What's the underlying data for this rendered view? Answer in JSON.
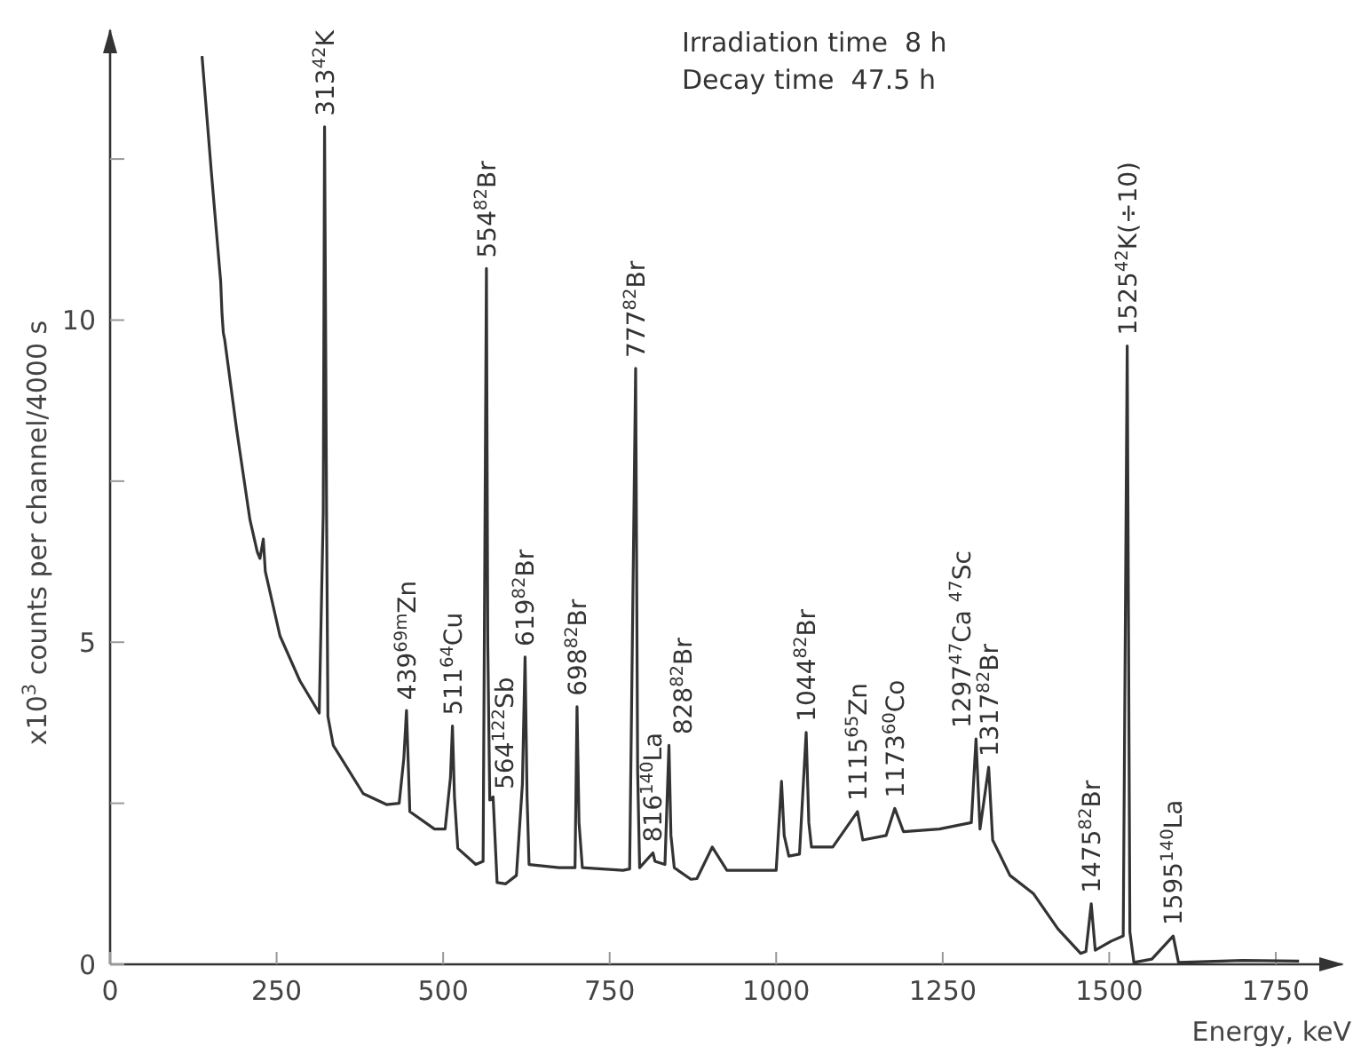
{
  "chart_data": {
    "type": "line",
    "xlabel": "Energy, keV",
    "ylabel": "x10$^{3}$ counts per channel/4000 s",
    "xlim": [
      0,
      1850
    ],
    "ylim": [
      0,
      14.5
    ],
    "xticks": [
      0,
      250,
      500,
      750,
      1000,
      1250,
      1500,
      1750
    ],
    "yticks": [
      0,
      {
        "value": 2.5,
        "label": null
      },
      5,
      {
        "value": 7.5,
        "label": null
      },
      10,
      {
        "value": 12.5,
        "label": null
      }
    ],
    "grid": false,
    "marker": "none",
    "line_style": "solid",
    "series": [
      {
        "color": "#333333",
        "x": [
          138,
          152,
          166,
          168,
          170,
          172,
          190,
          210,
          221,
          225,
          230,
          233,
          255,
          285,
          314,
          320,
          322,
          325,
          327,
          335,
          380,
          415,
          434,
          441,
          445,
          448,
          450,
          487,
          503,
          511,
          514,
          517,
          522,
          549,
          560,
          565,
          567,
          570,
          575,
          581,
          594,
          610,
          619,
          623,
          626,
          629,
          674,
          698,
          701,
          704,
          709,
          770,
          780,
          789,
          792,
          795,
          815,
          818,
          833,
          839,
          842,
          847,
          872,
          881,
          904,
          926,
          1000,
          1008,
          1012,
          1019,
          1035,
          1045,
          1049,
          1053,
          1085,
          1122,
          1130,
          1165,
          1178,
          1191,
          1245,
          1293,
          1300,
          1306,
          1319,
          1325,
          1351,
          1386,
          1423,
          1457,
          1465,
          1473,
          1479,
          1503,
          1521,
          1527,
          1531,
          1537,
          1564,
          1596,
          1604,
          1700,
          1785
        ],
        "values": [
          14.1,
          12.3,
          10.6,
          10.1,
          9.8,
          9.7,
          8.3,
          6.9,
          6.4,
          6.3,
          6.6,
          6.1,
          5.1,
          4.4,
          3.9,
          7.0,
          13.0,
          7.0,
          3.85,
          3.4,
          2.65,
          2.48,
          2.5,
          3.2,
          3.94,
          3.0,
          2.37,
          2.1,
          2.1,
          2.9,
          3.7,
          2.6,
          1.8,
          1.55,
          1.6,
          10.8,
          5.0,
          2.55,
          2.6,
          1.27,
          1.25,
          1.38,
          2.8,
          4.77,
          2.6,
          1.55,
          1.5,
          1.5,
          4.0,
          2.2,
          1.5,
          1.46,
          1.48,
          9.25,
          3.0,
          1.5,
          1.73,
          1.6,
          1.55,
          3.4,
          2.0,
          1.5,
          1.32,
          1.33,
          1.82,
          1.46,
          1.46,
          2.84,
          2.0,
          1.68,
          1.71,
          3.6,
          2.2,
          1.82,
          1.82,
          2.37,
          1.93,
          2.0,
          2.42,
          2.06,
          2.1,
          2.2,
          3.5,
          2.1,
          3.06,
          1.93,
          1.38,
          1.1,
          0.55,
          0.17,
          0.2,
          0.94,
          0.22,
          0.36,
          0.44,
          9.6,
          0.5,
          0.03,
          0.08,
          0.44,
          0.03,
          0.06,
          0.05
        ]
      }
    ],
    "annotations": [
      {
        "text": "313$^{42}$K",
        "x": 322,
        "y": 13.0
      },
      {
        "text": "439$^{69m}$Zn",
        "x": 445,
        "y": 3.94
      },
      {
        "text": "511$^{64}$Cu",
        "x": 514,
        "y": 3.7
      },
      {
        "text": "554$^{82}$Br",
        "x": 565,
        "y": 10.8
      },
      {
        "text": "564$^{122}$Sb",
        "x": 570,
        "y": 2.55
      },
      {
        "text": "619$^{82}$Br",
        "x": 623,
        "y": 4.77
      },
      {
        "text": "698$^{82}$Br",
        "x": 701,
        "y": 4.0
      },
      {
        "text": "777$^{82}$Br",
        "x": 789,
        "y": 9.25
      },
      {
        "text": "816$^{140}$La",
        "x": 815,
        "y": 1.73
      },
      {
        "text": "828$^{82}$Br",
        "x": 839,
        "y": 3.4
      },
      {
        "text": "1044$^{82}$Br",
        "x": 1045,
        "y": 3.6
      },
      {
        "text": "1115$^{65}$Zn",
        "x": 1122,
        "y": 2.37
      },
      {
        "text": "1173$^{60}$Co",
        "x": 1178,
        "y": 2.42
      },
      {
        "text": "1297$^{47}$Ca $^{47}$Sc",
        "x": 1300,
        "y": 3.5
      },
      {
        "text": "1317$^{82}$Br",
        "x": 1319,
        "y": 3.06
      },
      {
        "text": "1475$^{82}$Br",
        "x": 1473,
        "y": 0.94
      },
      {
        "text": "1525$^{42}$K(÷10)",
        "x": 1527,
        "y": 9.6
      },
      {
        "text": "1595$^{140}$La",
        "x": 1596,
        "y": 0.44
      },
      "Irradiation time  8 h",
      "Decay time  47.5 h"
    ]
  }
}
